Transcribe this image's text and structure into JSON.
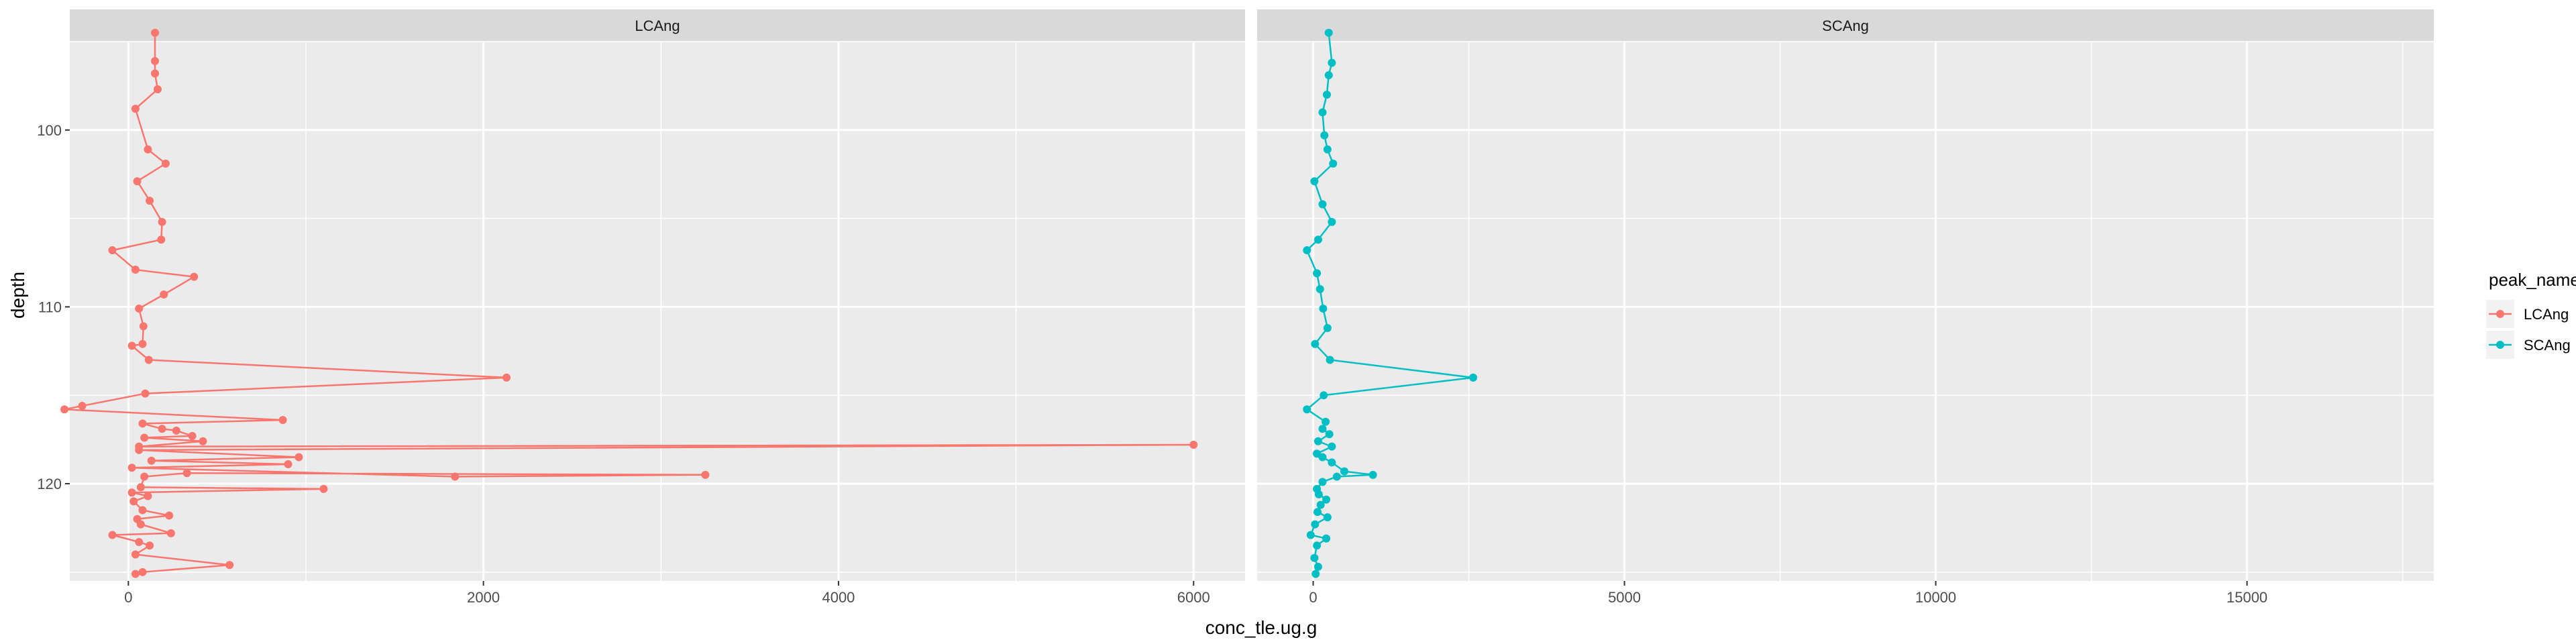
{
  "chart_data": {
    "type": "line",
    "xlabel": "conc_tle.ug.g",
    "ylabel": "depth",
    "y_reversed": true,
    "ylim": [
      125.5,
      95.0
    ],
    "y_ticks": [
      100,
      110,
      120
    ],
    "grid": true,
    "legend": {
      "title": "peak_name",
      "position": "right",
      "entries": [
        "LCAng",
        "SCAng"
      ]
    },
    "colors": {
      "LCAng": "#F8766D",
      "SCAng": "#00BFC4",
      "panel_bg": "#EBEBEB",
      "strip_bg": "#D9D9D9",
      "grid": "#FFFFFF"
    },
    "panels": [
      {
        "strip": "LCAng",
        "series": "LCAng",
        "xlim": [
          -330,
          6290
        ],
        "x_ticks": [
          0,
          2000,
          4000,
          6000
        ],
        "points": [
          [
            150,
            94.5
          ],
          [
            150,
            96.1
          ],
          [
            150,
            96.8
          ],
          [
            165,
            97.7
          ],
          [
            40,
            98.8
          ],
          [
            110,
            101.1
          ],
          [
            210,
            101.9
          ],
          [
            50,
            102.9
          ],
          [
            120,
            104.0
          ],
          [
            190,
            105.2
          ],
          [
            185,
            106.2
          ],
          [
            -90,
            106.8
          ],
          [
            40,
            107.9
          ],
          [
            370,
            108.3
          ],
          [
            200,
            109.3
          ],
          [
            60,
            110.1
          ],
          [
            85,
            111.1
          ],
          [
            80,
            112.1
          ],
          [
            20,
            112.2
          ],
          [
            115,
            113.0
          ],
          [
            2130,
            114.0
          ],
          [
            95,
            114.9
          ],
          [
            -260,
            115.6
          ],
          [
            -360,
            115.8
          ],
          [
            870,
            116.4
          ],
          [
            80,
            116.6
          ],
          [
            190,
            116.9
          ],
          [
            270,
            117.0
          ],
          [
            360,
            117.3
          ],
          [
            90,
            117.4
          ],
          [
            420,
            117.6
          ],
          [
            60,
            117.9
          ],
          [
            6000,
            117.8
          ],
          [
            60,
            118.1
          ],
          [
            960,
            118.5
          ],
          [
            130,
            118.7
          ],
          [
            900,
            118.9
          ],
          [
            20,
            119.1
          ],
          [
            1840,
            119.6
          ],
          [
            3250,
            119.5
          ],
          [
            330,
            119.4
          ],
          [
            90,
            119.6
          ],
          [
            70,
            120.2
          ],
          [
            1100,
            120.3
          ],
          [
            20,
            120.5
          ],
          [
            110,
            120.7
          ],
          [
            30,
            121.0
          ],
          [
            80,
            121.5
          ],
          [
            230,
            121.8
          ],
          [
            50,
            122.0
          ],
          [
            70,
            122.3
          ],
          [
            240,
            122.8
          ],
          [
            -90,
            122.9
          ],
          [
            60,
            123.3
          ],
          [
            120,
            123.5
          ],
          [
            40,
            124.0
          ],
          [
            570,
            124.6
          ],
          [
            80,
            125.0
          ],
          [
            40,
            125.1
          ]
        ]
      },
      {
        "strip": "SCAng",
        "series": "SCAng",
        "xlim": [
          -900,
          18000
        ],
        "x_ticks": [
          0,
          5000,
          10000,
          15000
        ],
        "points": [
          [
            250,
            94.5
          ],
          [
            300,
            96.2
          ],
          [
            250,
            96.9
          ],
          [
            220,
            98.0
          ],
          [
            150,
            99.0
          ],
          [
            180,
            100.3
          ],
          [
            230,
            101.1
          ],
          [
            320,
            101.9
          ],
          [
            20,
            102.9
          ],
          [
            150,
            104.2
          ],
          [
            300,
            105.2
          ],
          [
            80,
            106.2
          ],
          [
            -100,
            106.8
          ],
          [
            60,
            108.1
          ],
          [
            110,
            109.0
          ],
          [
            160,
            110.1
          ],
          [
            230,
            111.2
          ],
          [
            30,
            112.1
          ],
          [
            270,
            113.0
          ],
          [
            2570,
            114.0
          ],
          [
            170,
            115.0
          ],
          [
            -100,
            115.8
          ],
          [
            200,
            116.5
          ],
          [
            150,
            116.9
          ],
          [
            260,
            117.2
          ],
          [
            80,
            117.6
          ],
          [
            300,
            117.9
          ],
          [
            60,
            118.3
          ],
          [
            150,
            118.5
          ],
          [
            300,
            118.8
          ],
          [
            500,
            119.3
          ],
          [
            960,
            119.5
          ],
          [
            380,
            119.6
          ],
          [
            150,
            119.9
          ],
          [
            60,
            120.3
          ],
          [
            90,
            120.6
          ],
          [
            210,
            120.9
          ],
          [
            120,
            121.2
          ],
          [
            70,
            121.6
          ],
          [
            230,
            121.9
          ],
          [
            30,
            122.3
          ],
          [
            -40,
            122.9
          ],
          [
            210,
            123.1
          ],
          [
            60,
            123.5
          ],
          [
            20,
            124.2
          ],
          [
            80,
            124.7
          ],
          [
            40,
            125.1
          ]
        ]
      }
    ]
  }
}
